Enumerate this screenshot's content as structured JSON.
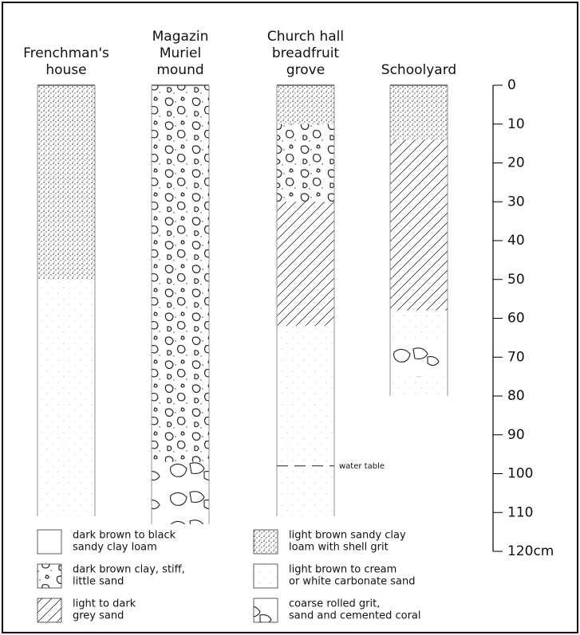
{
  "columns": [
    {
      "label": [
        "Frenchman's",
        "house"
      ],
      "layers": [
        {
          "from": 0,
          "to": 50,
          "fill": 3
        },
        {
          "from": 50,
          "to": 111,
          "fill": 4
        }
      ]
    },
    {
      "label": [
        "Magazin",
        "Muriel",
        "mound"
      ],
      "layers": [
        {
          "from": 0,
          "to": 97,
          "fill": 1
        },
        {
          "from": 97,
          "to": 113,
          "fill": 5
        }
      ]
    },
    {
      "label": [
        "Church hall",
        "breadfruit",
        "grove"
      ],
      "layers": [
        {
          "from": 0,
          "to": 10,
          "fill": 3
        },
        {
          "from": 10,
          "to": 30,
          "fill": 1
        },
        {
          "from": 30,
          "to": 62,
          "fill": 2
        },
        {
          "from": 62,
          "to": 111,
          "fill": 4
        }
      ]
    },
    {
      "label": [
        "Schoolyard"
      ],
      "layers": [
        {
          "from": 0,
          "to": 14,
          "fill": 3
        },
        {
          "from": 14,
          "to": 58,
          "fill": 2
        },
        {
          "from": 58,
          "to": 66,
          "fill": 4
        },
        {
          "from": 66,
          "to": 75,
          "fill": 5
        },
        {
          "from": 75,
          "to": 80,
          "fill": 4
        }
      ]
    }
  ],
  "water_table": {
    "label": "water table",
    "depth": 98
  },
  "scale": {
    "ticks": [
      0,
      10,
      20,
      30,
      40,
      50,
      60,
      70,
      80,
      90,
      100,
      110,
      {
        "value": 120,
        "label": "120cm"
      }
    ]
  },
  "legend": [
    [
      "dark brown to black",
      "sandy clay loam"
    ],
    [
      "dark brown clay, stiff,",
      "little sand"
    ],
    [
      "light to dark",
      "grey sand"
    ],
    [
      "light brown sandy clay",
      "loam with shell grit"
    ],
    [
      "light brown to cream",
      "or white carbonate sand"
    ],
    [
      "coarse rolled grit,",
      "sand and cemented coral"
    ]
  ]
}
